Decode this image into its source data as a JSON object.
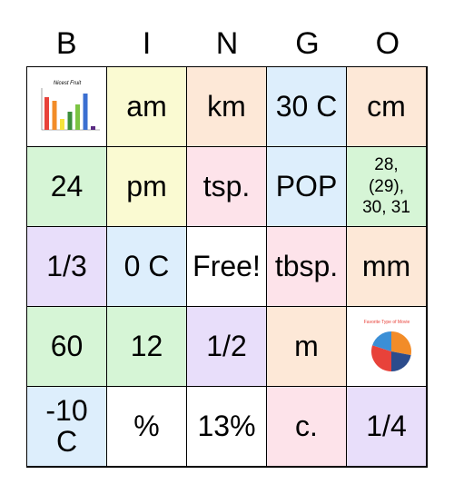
{
  "header": [
    "B",
    "I",
    "N",
    "G",
    "O"
  ],
  "colors": {
    "yellow": "#fafad2",
    "orange": "#fde8d7",
    "blue": "#ddeefc",
    "green": "#d6f5d6",
    "pink": "#fde3ea",
    "purple": "#e8defa",
    "white": "#ffffff"
  },
  "cells": [
    {
      "text": "",
      "color": "white",
      "image": "bar-chart"
    },
    {
      "text": "am",
      "color": "yellow"
    },
    {
      "text": "km",
      "color": "orange"
    },
    {
      "text": "30 C",
      "color": "blue"
    },
    {
      "text": "cm",
      "color": "orange"
    },
    {
      "text": "24",
      "color": "green"
    },
    {
      "text": "pm",
      "color": "yellow"
    },
    {
      "text": "tsp.",
      "color": "pink"
    },
    {
      "text": "POP",
      "color": "blue"
    },
    {
      "text": "28,\n(29),\n30, 31",
      "color": "green",
      "small": true
    },
    {
      "text": "1/3",
      "color": "purple"
    },
    {
      "text": "0 C",
      "color": "blue"
    },
    {
      "text": "Free!",
      "color": "white",
      "free": true
    },
    {
      "text": "tbsp.",
      "color": "pink"
    },
    {
      "text": "mm",
      "color": "orange"
    },
    {
      "text": "60",
      "color": "green"
    },
    {
      "text": "12",
      "color": "green"
    },
    {
      "text": "1/2",
      "color": "purple"
    },
    {
      "text": "m",
      "color": "orange"
    },
    {
      "text": "",
      "color": "white",
      "image": "pie-chart"
    },
    {
      "text": "-10\nC",
      "color": "blue"
    },
    {
      "text": "%",
      "color": "white"
    },
    {
      "text": "13%",
      "color": "white"
    },
    {
      "text": "c.",
      "color": "pink"
    },
    {
      "text": "1/4",
      "color": "purple"
    }
  ],
  "images": {
    "bar-chart": {
      "title": "Nicest Fruit",
      "bar_colors": [
        "#e8423a",
        "#f28c28",
        "#f5e33c",
        "#3c8e3c",
        "#7cc443",
        "#3b6fd1",
        "#5a2a82"
      ],
      "values": [
        9,
        8,
        3,
        5,
        7,
        10,
        1
      ]
    },
    "pie-chart": {
      "title": "Favorite Type of Movie",
      "slice_colors": [
        "#f28c28",
        "#2c4c8c",
        "#e8423a",
        "#3b8fd6"
      ],
      "values": [
        28,
        22,
        30,
        20
      ]
    }
  }
}
